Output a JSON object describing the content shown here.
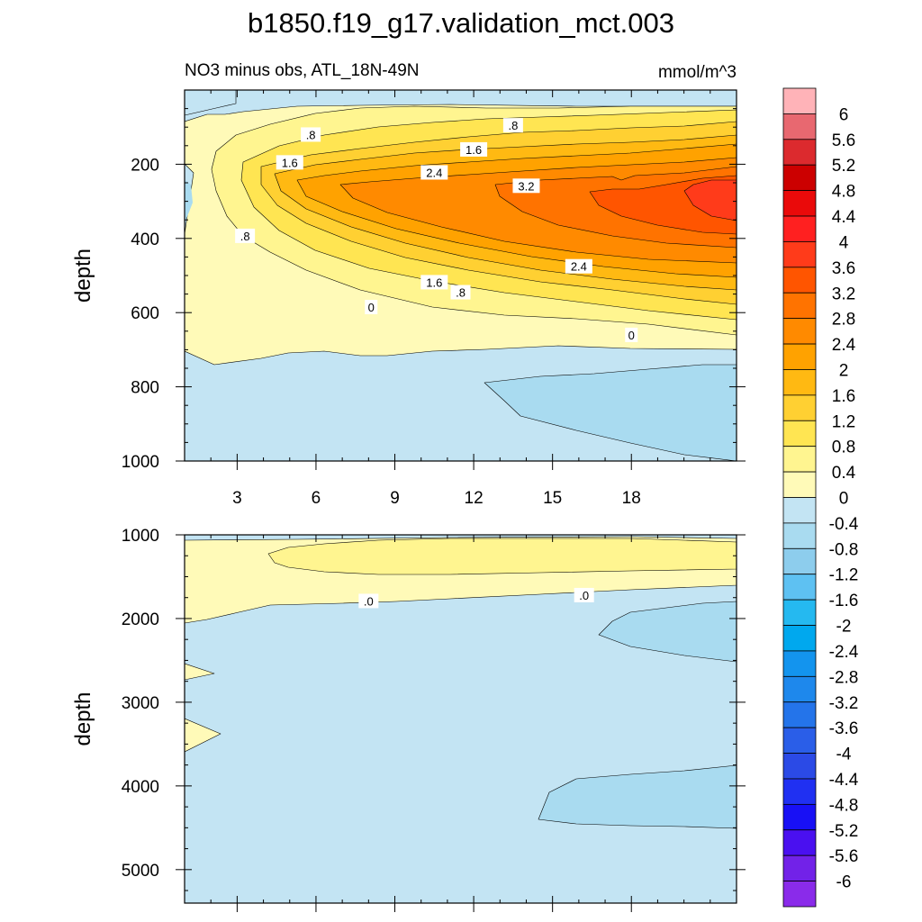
{
  "chart_data": {
    "type": "contour",
    "title": "b1850.f19_g17.validation_mct.003",
    "subtitle_left": "NO3 minus obs, ATL_18N-49N",
    "units": "mmol/m^3",
    "x": {
      "range": [
        1,
        22
      ],
      "ticks": [
        3,
        6,
        9,
        12,
        15,
        18
      ],
      "tick_labels": [
        "3",
        "6",
        "9",
        "12",
        "15",
        "18"
      ]
    },
    "panels": [
      {
        "name": "upper",
        "ylabel": "depth",
        "ylim": [
          0,
          1000
        ],
        "yticks": [
          200,
          400,
          600,
          800,
          1000
        ],
        "ytick_labels": [
          "200",
          "400",
          "600",
          "800",
          "1000"
        ],
        "contour_labels": [
          {
            "text": ".8",
            "x": 5.8,
            "y": 120
          },
          {
            "text": ".8",
            "x": 13.5,
            "y": 95
          },
          {
            "text": "1.6",
            "x": 12.0,
            "y": 160
          },
          {
            "text": "1.6",
            "x": 5.0,
            "y": 195
          },
          {
            "text": "2.4",
            "x": 10.5,
            "y": 222
          },
          {
            "text": "3.2",
            "x": 14.0,
            "y": 258
          },
          {
            "text": ".8",
            "x": 3.3,
            "y": 393
          },
          {
            "text": "2.4",
            "x": 16.0,
            "y": 475
          },
          {
            "text": "1.6",
            "x": 10.5,
            "y": 518
          },
          {
            "text": ".8",
            "x": 11.5,
            "y": 545
          },
          {
            "text": "0",
            "x": 8.1,
            "y": 585
          },
          {
            "text": "0",
            "x": 18.0,
            "y": 660
          }
        ]
      },
      {
        "name": "lower",
        "ylabel": "depth",
        "ylim": [
          1000,
          5400
        ],
        "yticks": [
          1000,
          2000,
          3000,
          4000,
          5000
        ],
        "ytick_labels": [
          "1000",
          "2000",
          "3000",
          "4000",
          "5000"
        ],
        "contour_labels": [
          {
            "text": ".0",
            "x": 8.0,
            "y": 1790
          },
          {
            "text": ".0",
            "x": 16.2,
            "y": 1720
          }
        ]
      }
    ],
    "colorbar": {
      "levels": [
        "6",
        "5.6",
        "5.2",
        "4.8",
        "4.4",
        "4",
        "3.6",
        "3.2",
        "2.8",
        "2.4",
        "2",
        "1.6",
        "1.2",
        "0.8",
        "0.4",
        "0",
        "-0.4",
        "-0.8",
        "-1.2",
        "-1.6",
        "-2",
        "-2.4",
        "-2.8",
        "-3.2",
        "-3.6",
        "-4",
        "-4.4",
        "-4.8",
        "-5.2",
        "-5.6",
        "-6"
      ],
      "colors": [
        "#ffb3b8",
        "#e86870",
        "#dc2a2e",
        "#cc0000",
        "#ea0a0a",
        "#ff2020",
        "#ff3b1a",
        "#ff5500",
        "#ff7300",
        "#ff8a00",
        "#ffa200",
        "#ffb912",
        "#ffd032",
        "#ffe552",
        "#fff590",
        "#fffab8",
        "#c3e4f3",
        "#a9dbf0",
        "#8dcded",
        "#5ec1f2",
        "#25b9f0",
        "#00a8ee",
        "#1394ee",
        "#1e88ec",
        "#2474ea",
        "#2a5ee8",
        "#2b4ae6",
        "#2030f2",
        "#1810f5",
        "#4a10f0",
        "#7222e8",
        "#8a2bea"
      ]
    }
  }
}
